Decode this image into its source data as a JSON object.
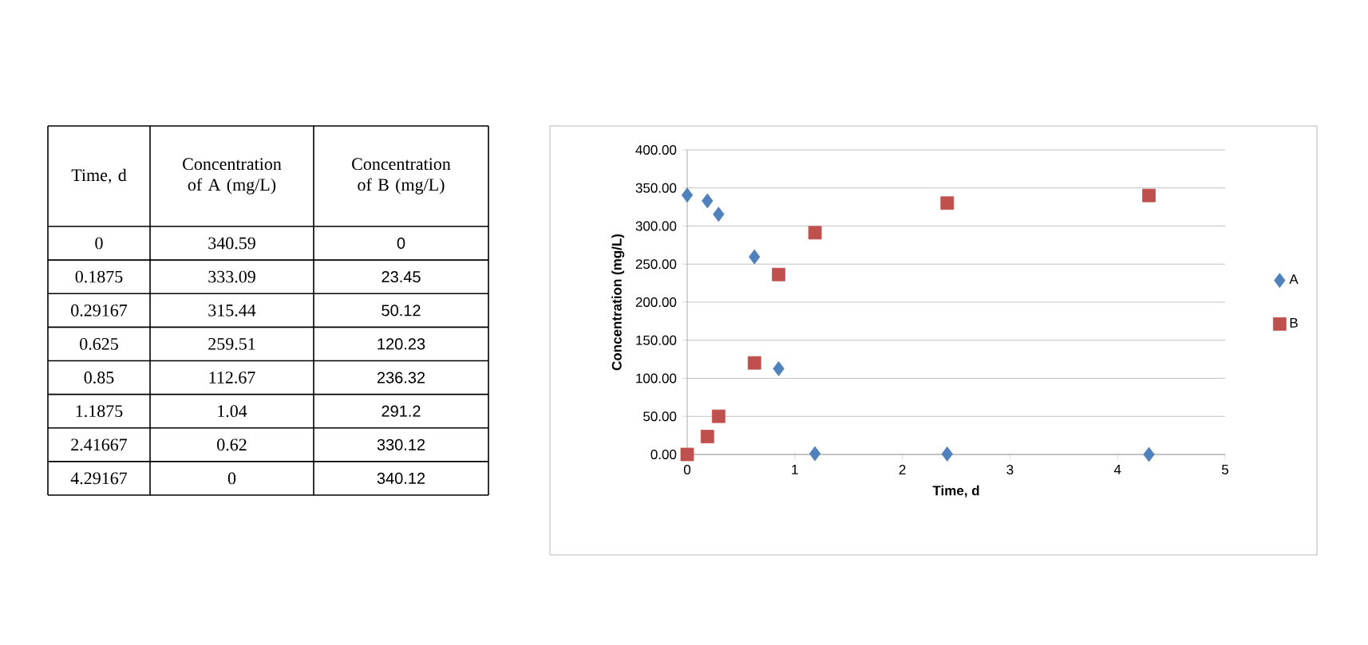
{
  "chart_data": [
    {
      "type": "other",
      "annotations": [
        "Time, d",
        "Concentration of A (mg/L)",
        "Concentration of B (mg/L)",
        "0",
        "340.59",
        "0",
        "0.1875",
        "333.09",
        "23.45",
        "0.29167",
        "315.44",
        "50.12",
        "0.625",
        "259.51",
        "120.23",
        "0.85",
        "112.67",
        "236.32",
        "1.1875",
        "1.04",
        "291.2",
        "2.41667",
        "0.62",
        "330.12",
        "4.29167",
        "0",
        "340.12"
      ]
    },
    {
      "type": "scatter",
      "xlabel": "Time, d",
      "ylabel": "Concentration  (mg/L)",
      "series": [
        {
          "name": "A",
          "color": "#4f81bd",
          "marker": "diamond",
          "x": [
            0,
            0.1875,
            0.29167,
            0.625,
            0.85,
            1.1875,
            2.41667,
            4.29167
          ],
          "values": [
            340.59,
            333.09,
            315.44,
            259.51,
            112.67,
            1.04,
            0.62,
            0
          ]
        },
        {
          "name": "B",
          "color": "#c0504d",
          "marker": "square",
          "x": [
            0,
            0.1875,
            0.29167,
            0.625,
            0.85,
            1.1875,
            2.41667,
            4.29167
          ],
          "values": [
            0,
            23.45,
            50.12,
            120.23,
            236.32,
            291.2,
            330.12,
            340.12
          ]
        }
      ],
      "xlim": [
        0,
        5
      ],
      "xticks": [
        0,
        1,
        2,
        3,
        4,
        5
      ],
      "ylim": [
        0,
        400
      ],
      "yticks": [
        {
          "value": 0,
          "label": "0.00"
        },
        {
          "value": 50,
          "label": "50.00"
        },
        {
          "value": 100,
          "label": "100.00"
        },
        {
          "value": 150,
          "label": "150.00"
        },
        {
          "value": 200,
          "label": "200.00"
        },
        {
          "value": 250,
          "label": "250.00"
        },
        {
          "value": 300,
          "label": "300.00"
        },
        {
          "value": 350,
          "label": "350.00"
        },
        {
          "value": 400,
          "label": "400.00"
        }
      ],
      "grid": "y",
      "legend": "right"
    }
  ]
}
